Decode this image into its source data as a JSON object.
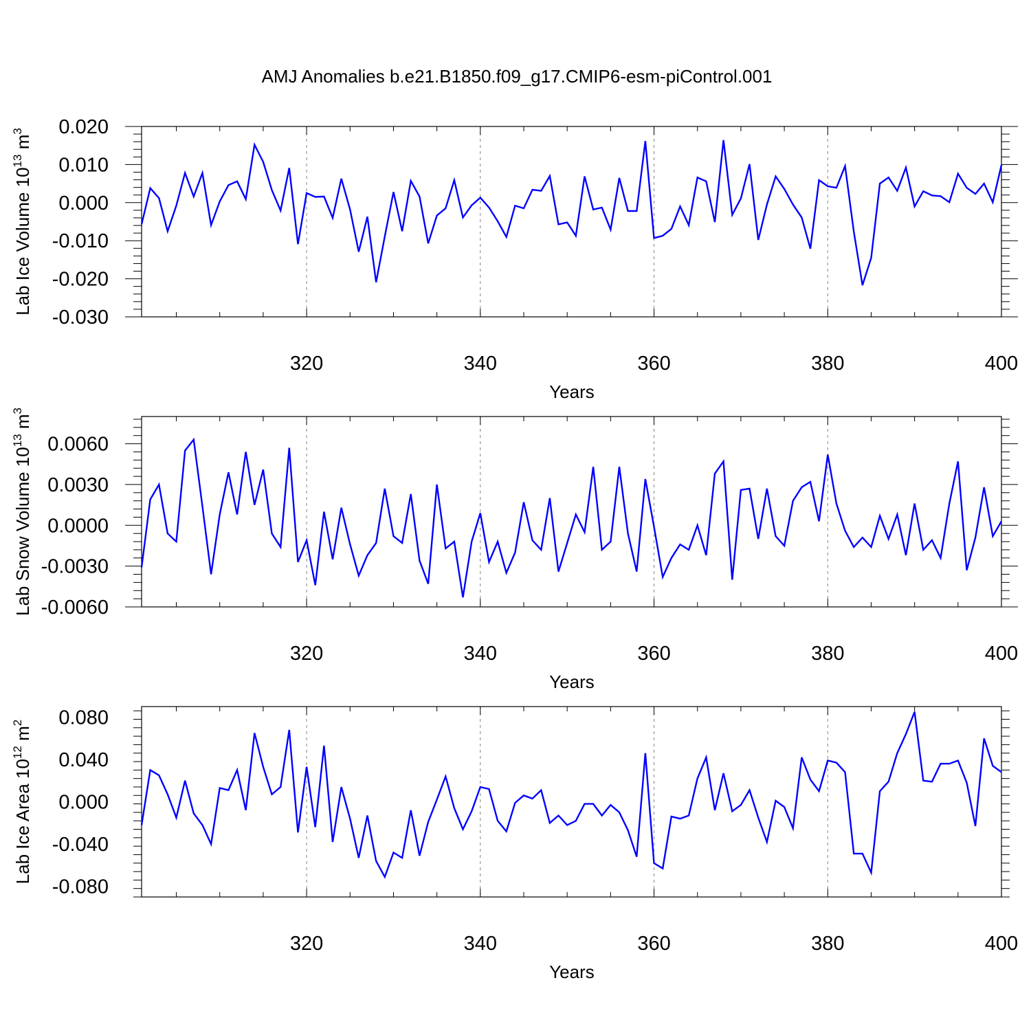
{
  "figure": {
    "title": "AMJ Anomalies b.e21.B1850.f09_g17.CMIP6-esm-piControl.001"
  },
  "style": {
    "line_color": "#0000ff",
    "grid_color": "#808080",
    "axis_color": "#000000"
  },
  "chart_data": [
    {
      "type": "line",
      "title": "AMJ Anomalies b.e21.B1850.f09_g17.CMIP6-esm-piControl.001",
      "xlabel": "Years",
      "ylabel_main": "Lab Ice Volume 10",
      "ylabel_exp": "13",
      "ylabel_unit": " m",
      "ylabel_unit_exp": "3",
      "xlim": [
        301,
        400
      ],
      "ylim": [
        -0.03,
        0.02
      ],
      "xticks": [
        320,
        340,
        360,
        380,
        400
      ],
      "yticks": [
        -0.03,
        -0.02,
        -0.01,
        0.0,
        0.01,
        0.02
      ],
      "ytick_labels": [
        "-0.030",
        "-0.020",
        "-0.010",
        "0.000",
        "0.010",
        "0.020"
      ],
      "grid": "vertical dashed at major x ticks",
      "x_start": 301,
      "series": [
        {
          "values": [
            -0.0057,
            0.0038,
            0.0012,
            -0.0075,
            -0.0008,
            0.0078,
            0.0016,
            0.0078,
            -0.0059,
            0.0003,
            0.0046,
            0.0056,
            0.0009,
            0.0152,
            0.0107,
            0.0033,
            -0.0021,
            0.0091,
            -0.0109,
            0.0025,
            0.0015,
            0.0016,
            -0.004,
            0.0063,
            -0.0018,
            -0.0129,
            -0.0037,
            -0.0209,
            -0.0089,
            0.0028,
            -0.0075,
            0.0057,
            0.0016,
            -0.0107,
            -0.0034,
            -0.0015,
            0.0059,
            -0.0039,
            -0.0007,
            0.0013,
            -0.0013,
            -0.0049,
            -0.009,
            -0.0008,
            -0.0015,
            0.0034,
            0.0031,
            0.007,
            -0.0057,
            -0.0052,
            -0.0087,
            0.0069,
            -0.0018,
            -0.0013,
            -0.0071,
            0.0065,
            -0.0022,
            -0.0022,
            0.0162,
            -0.0093,
            -0.0087,
            -0.0069,
            -0.001,
            -0.0059,
            0.0066,
            0.0056,
            -0.0051,
            0.0164,
            -0.0032,
            0.0011,
            0.0101,
            -0.0098,
            -0.0005,
            0.0069,
            0.0036,
            -0.0005,
            -0.0039,
            -0.0121,
            0.0059,
            0.0043,
            0.0039,
            0.0096,
            -0.0076,
            -0.0217,
            -0.0145,
            0.005,
            0.0066,
            0.0031,
            0.0092,
            -0.001,
            0.003,
            0.0019,
            0.0017,
            0.0001,
            0.0076,
            0.0039,
            0.0023,
            0.005,
            0.0001,
            0.0099
          ]
        }
      ]
    },
    {
      "type": "line",
      "xlabel": "Years",
      "ylabel_main": "Lab Snow Volume 10",
      "ylabel_exp": "13",
      "ylabel_unit": " m",
      "ylabel_unit_exp": "3",
      "xlim": [
        301,
        400
      ],
      "ylim": [
        -0.006,
        0.008
      ],
      "xticks": [
        320,
        340,
        360,
        380,
        400
      ],
      "yticks": [
        -0.006,
        -0.003,
        0.0,
        0.003,
        0.006
      ],
      "ytick_labels": [
        "-0.0060",
        "-0.0030",
        "0.0000",
        "0.0030",
        "0.0060"
      ],
      "grid": "vertical dashed at major x ticks",
      "x_start": 301,
      "series": [
        {
          "values": [
            -0.0031,
            0.0019,
            0.003,
            -0.0006,
            -0.0012,
            0.0055,
            0.0063,
            0.0014,
            -0.0036,
            0.0008,
            0.0039,
            0.0008,
            0.0054,
            0.0015,
            0.0041,
            -0.0006,
            -0.0016,
            0.0057,
            -0.0027,
            -0.0011,
            -0.0044,
            0.001,
            -0.0025,
            0.0013,
            -0.0014,
            -0.0037,
            -0.0022,
            -0.0013,
            0.0027,
            -0.0008,
            -0.0013,
            0.0023,
            -0.0026,
            -0.0043,
            0.003,
            -0.0017,
            -0.0012,
            -0.0053,
            -0.0012,
            0.0009,
            -0.0027,
            -0.0012,
            -0.0035,
            -0.002,
            0.0017,
            -0.0011,
            -0.0018,
            0.002,
            -0.0034,
            -0.0013,
            0.0008,
            -0.0005,
            0.0043,
            -0.0018,
            -0.0012,
            0.0043,
            -0.0006,
            -0.0034,
            0.0034,
            -0.0001,
            -0.0038,
            -0.0024,
            -0.0014,
            -0.0018,
            0.0,
            -0.0022,
            0.0038,
            0.0047,
            -0.004,
            0.0026,
            0.0027,
            -0.001,
            0.0027,
            -0.0008,
            -0.0015,
            0.0018,
            0.0028,
            0.0032,
            0.0003,
            0.0052,
            0.0016,
            -0.0004,
            -0.0016,
            -0.0009,
            -0.0016,
            0.0007,
            -0.001,
            0.0008,
            -0.0022,
            0.0016,
            -0.0018,
            -0.0011,
            -0.0024,
            0.0016,
            0.0047,
            -0.0033,
            -0.0009,
            0.0028,
            -0.0008,
            0.0003
          ]
        }
      ]
    },
    {
      "type": "line",
      "xlabel": "Years",
      "ylabel_main": "Lab Ice Area 10",
      "ylabel_exp": "12",
      "ylabel_unit": " m",
      "ylabel_unit_exp": "2",
      "xlim": [
        301,
        400
      ],
      "ylim": [
        -0.09,
        0.09
      ],
      "xticks": [
        320,
        340,
        360,
        380,
        400
      ],
      "yticks": [
        -0.08,
        -0.04,
        0.0,
        0.04,
        0.08
      ],
      "ytick_labels": [
        "-0.080",
        "-0.040",
        "0.000",
        "0.040",
        "0.080"
      ],
      "grid": "vertical dashed at major x ticks",
      "x_start": 301,
      "series": [
        {
          "values": [
            -0.022,
            0.03,
            0.025,
            0.007,
            -0.015,
            0.02,
            -0.011,
            -0.022,
            -0.04,
            0.013,
            0.011,
            0.03,
            -0.008,
            0.065,
            0.033,
            0.007,
            0.014,
            0.068,
            -0.029,
            0.033,
            -0.024,
            0.053,
            -0.038,
            0.014,
            -0.016,
            -0.053,
            -0.013,
            -0.056,
            -0.071,
            -0.048,
            -0.053,
            -0.008,
            -0.051,
            -0.019,
            0.002,
            0.024,
            -0.006,
            -0.026,
            -0.009,
            0.014,
            0.012,
            -0.018,
            -0.028,
            -0.001,
            0.006,
            0.003,
            0.011,
            -0.02,
            -0.013,
            -0.022,
            -0.018,
            -0.002,
            -0.002,
            -0.013,
            -0.003,
            -0.01,
            -0.027,
            -0.052,
            0.046,
            -0.058,
            -0.063,
            -0.014,
            -0.016,
            -0.013,
            0.022,
            0.042,
            -0.008,
            0.027,
            -0.009,
            -0.003,
            0.011,
            -0.015,
            -0.038,
            0.001,
            -0.005,
            -0.025,
            0.042,
            0.021,
            0.01,
            0.039,
            0.037,
            0.028,
            -0.049,
            -0.049,
            -0.067,
            0.01,
            0.019,
            0.046,
            0.064,
            0.085,
            0.02,
            0.019,
            0.036,
            0.036,
            0.039,
            0.018,
            -0.023,
            0.06,
            0.034,
            0.028
          ]
        }
      ]
    }
  ]
}
